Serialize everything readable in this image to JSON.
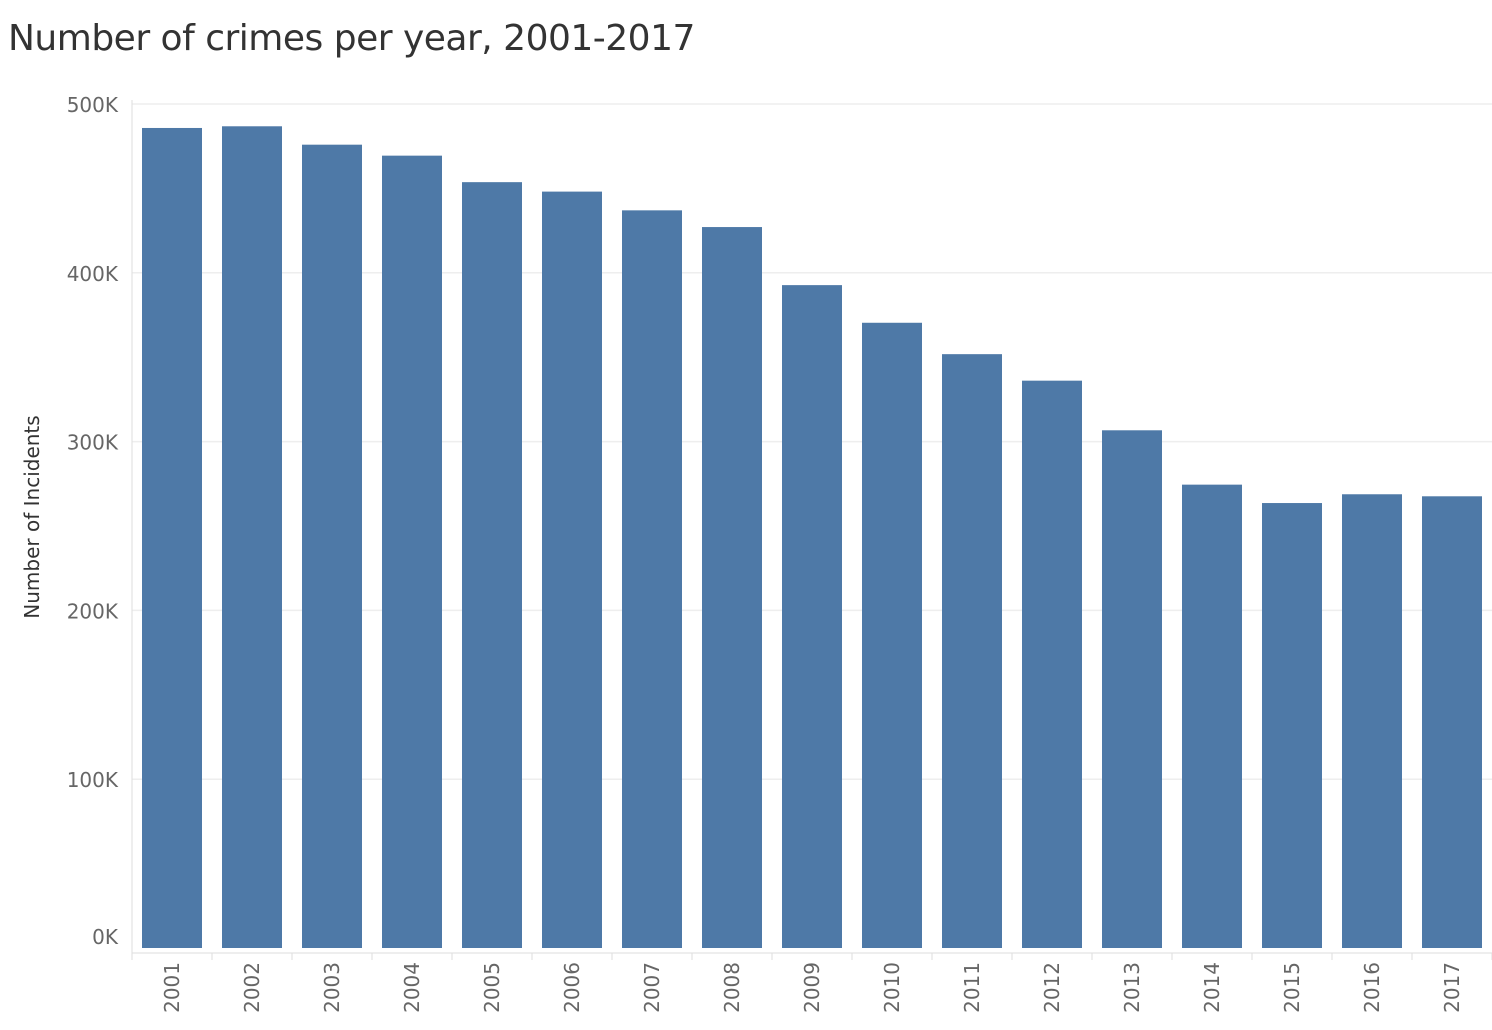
{
  "chart_data": {
    "type": "bar",
    "title": "Number of crimes per year, 2001-2017",
    "xlabel": "",
    "ylabel": "Number of Incidents",
    "categories": [
      "2001",
      "2002",
      "2003",
      "2004",
      "2005",
      "2006",
      "2007",
      "2008",
      "2009",
      "2010",
      "2011",
      "2012",
      "2013",
      "2014",
      "2015",
      "2016",
      "2017"
    ],
    "values": [
      485800,
      486800,
      475900,
      469400,
      453700,
      448100,
      437000,
      427100,
      392700,
      370400,
      351800,
      336100,
      306700,
      274500,
      263600,
      268800,
      267600
    ],
    "ylim": [
      0,
      500000
    ],
    "yticks": [
      0,
      100000,
      200000,
      300000,
      400000,
      500000
    ],
    "ytick_labels": [
      "0K",
      "100K",
      "200K",
      "300K",
      "400K",
      "500K"
    ],
    "grid": true,
    "colors": {
      "bar": "#4e79a7",
      "grid": "#eeeeee",
      "axis": "#dddddd",
      "text": "#333333",
      "tick_text": "#666666"
    }
  }
}
